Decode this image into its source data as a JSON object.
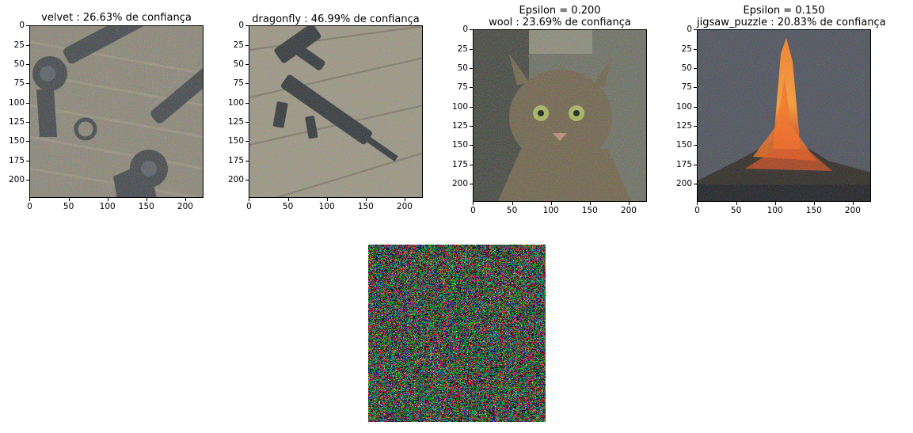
{
  "panels": [
    {
      "title_lines": [
        "velvet : 26.63% de confiança"
      ],
      "subject": "two revolvers on fabric",
      "x_ticks": [
        "0",
        "50",
        "100",
        "150",
        "200"
      ],
      "y_ticks": [
        "0",
        "25",
        "50",
        "75",
        "100",
        "125",
        "150",
        "175",
        "200"
      ]
    },
    {
      "title_lines": [
        "dragonfly : 46.99% de confiança"
      ],
      "subject": "assault rifle on wooden deck",
      "x_ticks": [
        "0",
        "50",
        "100",
        "150",
        "200"
      ],
      "y_ticks": [
        "0",
        "25",
        "50",
        "75",
        "100",
        "125",
        "150",
        "175",
        "200"
      ]
    },
    {
      "title_lines": [
        "Epsilon = 0.200",
        "wool : 23.69% de confiança"
      ],
      "subject": "tabby cat",
      "x_ticks": [
        "0",
        "50",
        "100",
        "150",
        "200"
      ],
      "y_ticks": [
        "0",
        "25",
        "50",
        "75",
        "100",
        "125",
        "150",
        "175",
        "200"
      ]
    },
    {
      "title_lines": [
        "Epsilon = 0.150",
        "jigsaw_puzzle : 20.83% de confiança"
      ],
      "subject": "erupting volcano",
      "x_ticks": [
        "0",
        "50",
        "100",
        "150",
        "200"
      ],
      "y_ticks": [
        "0",
        "25",
        "50",
        "75",
        "100",
        "125",
        "150",
        "175",
        "200"
      ]
    }
  ],
  "noise_panel": {
    "subject": "adversarial perturbation noise pattern"
  },
  "colors": {
    "axis": "#000000",
    "background": "#ffffff"
  }
}
